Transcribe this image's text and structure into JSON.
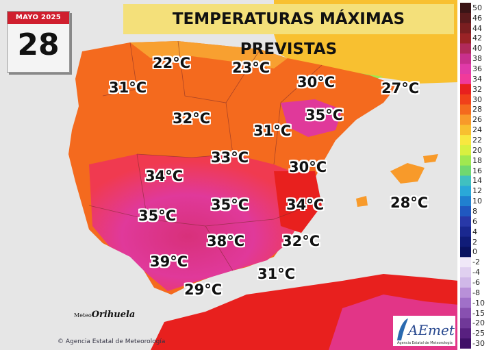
{
  "date": {
    "month": "MAYO 2025",
    "day": "28"
  },
  "title": "TEMPERATURAS MÁXIMAS PREVISTAS",
  "temperatures": [
    "22°C",
    "23°C",
    "31°C",
    "30°C",
    "27°C",
    "32°C",
    "35°C",
    "31°C",
    "33°C",
    "30°C",
    "34°C",
    "28°C",
    "35°C",
    "34°C",
    "35°C",
    "38°C",
    "32°C",
    "39°C",
    "31°C",
    "29°C"
  ],
  "legend": {
    "labels": [
      "50",
      "46",
      "44",
      "42",
      "40",
      "38",
      "36",
      "34",
      "32",
      "30",
      "28",
      "26",
      "24",
      "22",
      "20",
      "18",
      "16",
      "14",
      "12",
      "10",
      "8",
      "6",
      "4",
      "2",
      "0",
      "-2",
      "-4",
      "-6",
      "-8",
      "-10",
      "-15",
      "-20",
      "-25",
      "-30"
    ],
    "colors": [
      "#3a1416",
      "#5a1a1c",
      "#7a1e20",
      "#9a2326",
      "#b02a5a",
      "#c8308c",
      "#e03aa8",
      "#f03a9a",
      "#e8201e",
      "#f0401a",
      "#f46a1e",
      "#f89a2a",
      "#f8c030",
      "#f8e840",
      "#d8f040",
      "#a0e850",
      "#70d870",
      "#40c0c0",
      "#2aa8d8",
      "#2080d0",
      "#2058c0",
      "#2838a8",
      "#1a2890",
      "#101c78",
      "#0a1260",
      "#f0e8f8",
      "#e0d0f0",
      "#d0b8e8",
      "#b890d8",
      "#a070c8",
      "#8850b0",
      "#703898",
      "#582080",
      "#401068"
    ]
  },
  "logos": {
    "meteorihuela_prefix": "Meteo",
    "meteorihuela_name": "Orihuela",
    "aemet_name": "AEmet",
    "aemet_sub": "Agencia Estatal de Meteorología"
  },
  "credit": "Agencia Estatal de Meteorología",
  "colors": {
    "sea": "#e6e6e6",
    "title_bg": "#f4e07a",
    "date_header": "#d01f2e"
  }
}
